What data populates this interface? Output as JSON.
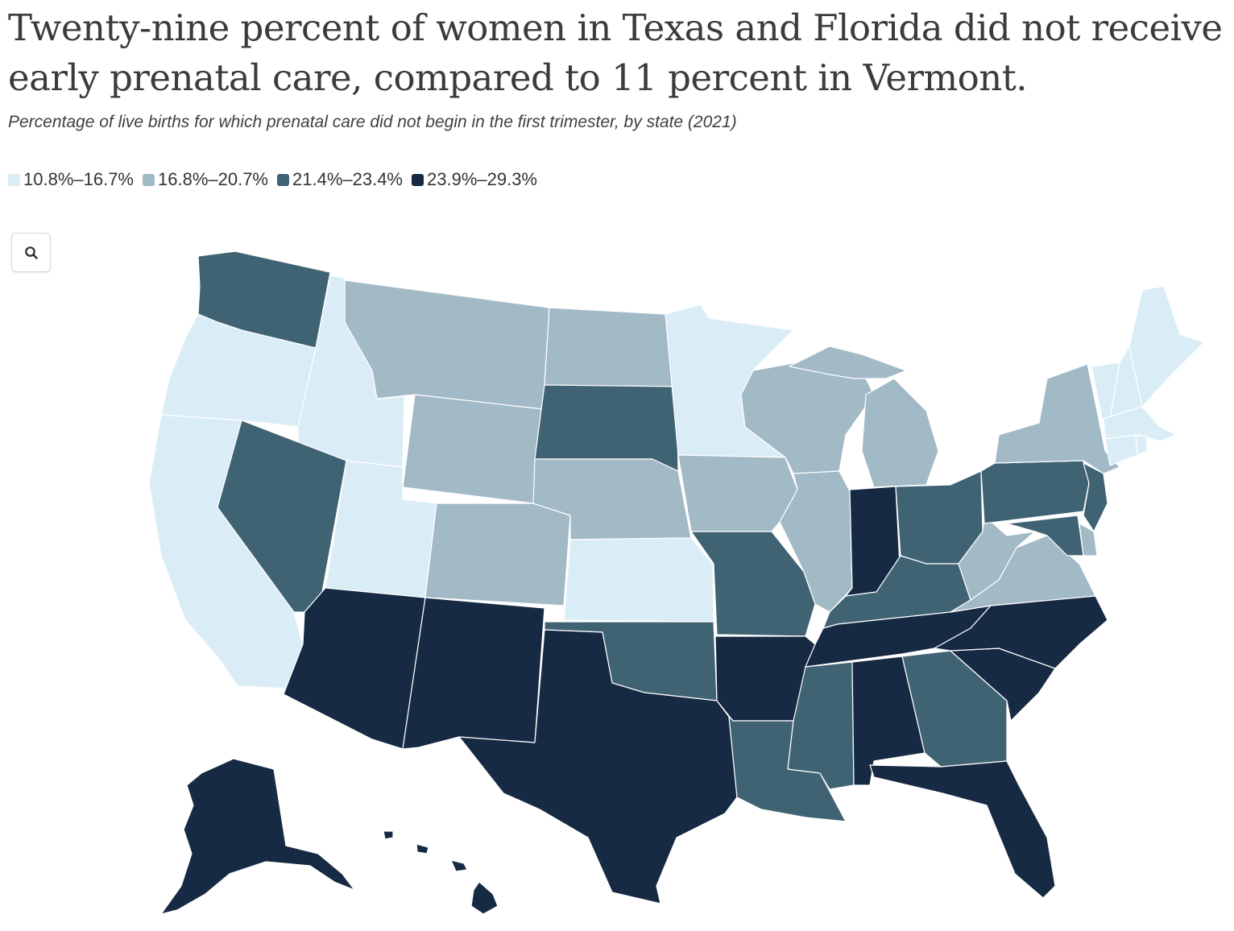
{
  "title": "Twenty-nine percent of women in Texas and Florida did not receive early prenatal care, compared to 11 percent in Vermont.",
  "subtitle": "Percentage of live births for which prenatal care did not begin in the first trimester, by state (2021)",
  "legend": [
    {
      "label": "10.8%–16.7%",
      "color": "#daedf6"
    },
    {
      "label": "16.8%–20.7%",
      "color": "#a2b9c6"
    },
    {
      "label": "21.4%–23.4%",
      "color": "#406374"
    },
    {
      "label": "23.9%–29.3%",
      "color": "#172a43"
    }
  ],
  "zoom_button": {
    "icon": "search-icon"
  },
  "map_data": {
    "type": "choropleth",
    "year": 2021,
    "state_bins": {
      "Washington": 2,
      "Oregon": 0,
      "California": 0,
      "Idaho": 0,
      "Nevada": 2,
      "Utah": 0,
      "Arizona": 3,
      "Montana": 1,
      "Wyoming": 1,
      "Colorado": 1,
      "New Mexico": 3,
      "North Dakota": 1,
      "South Dakota": 2,
      "Nebraska": 1,
      "Kansas": 0,
      "Oklahoma": 2,
      "Texas": 3,
      "Minnesota": 0,
      "Iowa": 1,
      "Missouri": 2,
      "Arkansas": 3,
      "Louisiana": 2,
      "Wisconsin": 1,
      "Illinois": 1,
      "Michigan": 1,
      "Indiana": 3,
      "Ohio": 2,
      "Kentucky": 2,
      "Tennessee": 3,
      "Mississippi": 2,
      "Alabama": 3,
      "Georgia": 2,
      "Florida": 3,
      "South Carolina": 3,
      "North Carolina": 3,
      "Virginia": 1,
      "West Virginia": 1,
      "Pennsylvania": 2,
      "New York": 1,
      "New Jersey": 2,
      "Delaware": 1,
      "Maryland": 2,
      "Maine": 0,
      "New Hampshire": 0,
      "Vermont": 0,
      "Massachusetts": 0,
      "Connecticut": 0,
      "Rhode Island": 0,
      "Alaska": 3,
      "Hawaii": 3
    }
  }
}
